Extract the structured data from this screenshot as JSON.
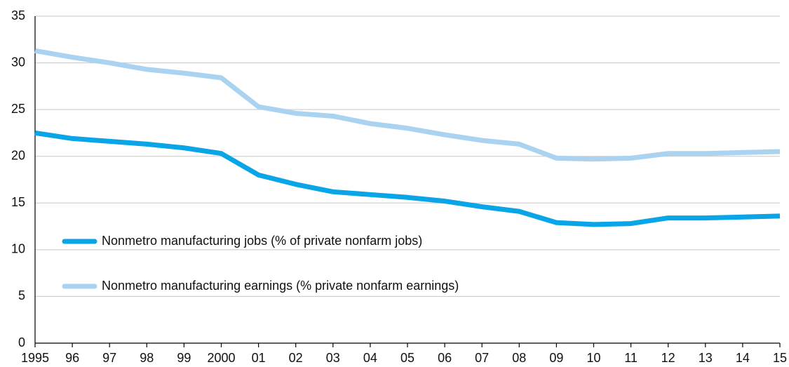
{
  "chart_data": {
    "type": "line",
    "categories": [
      "1995",
      "96",
      "97",
      "98",
      "99",
      "2000",
      "01",
      "02",
      "03",
      "04",
      "05",
      "06",
      "07",
      "08",
      "09",
      "10",
      "11",
      "12",
      "13",
      "14",
      "15"
    ],
    "series": [
      {
        "name": "Nonmetro manufacturing jobs (% of private nonfarm jobs)",
        "color": "#0aa5e6",
        "values": [
          22.5,
          21.9,
          21.6,
          21.3,
          20.9,
          20.3,
          18.0,
          17.0,
          16.2,
          15.9,
          15.6,
          15.2,
          14.6,
          14.1,
          12.9,
          12.7,
          12.8,
          13.4,
          13.4,
          13.5,
          13.6
        ]
      },
      {
        "name": "Nonmetro manufacturing earnings (% private nonfarm earnings)",
        "color": "#a9d3f0",
        "values": [
          31.3,
          30.6,
          30.0,
          29.3,
          28.9,
          28.4,
          25.3,
          24.6,
          24.3,
          23.5,
          23.0,
          22.3,
          21.7,
          21.3,
          19.8,
          19.7,
          19.8,
          20.3,
          20.3,
          20.4,
          20.5
        ]
      }
    ],
    "ylim": [
      0,
      35
    ],
    "yticks": [
      0,
      5,
      10,
      15,
      20,
      25,
      30,
      35
    ],
    "grid": true,
    "legend_loc": "center left"
  }
}
